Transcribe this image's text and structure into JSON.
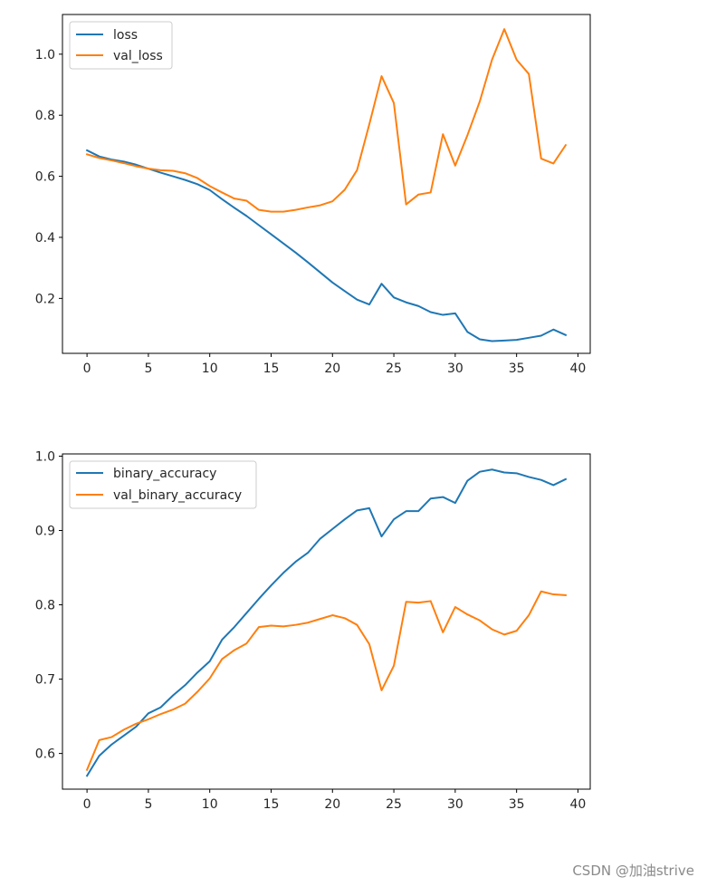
{
  "watermark": "CSDN @加油strive",
  "colors": {
    "series1": "#1f77b4",
    "series2": "#ff7f0e",
    "axis": "#000000",
    "text": "#262626"
  },
  "chart_data": [
    {
      "type": "line",
      "title": "",
      "xlabel": "",
      "ylabel": "",
      "xlim": [
        -2,
        41
      ],
      "ylim": [
        0.02,
        1.13
      ],
      "xticks": [
        0,
        5,
        10,
        15,
        20,
        25,
        30,
        35,
        40
      ],
      "yticks": [
        0.2,
        0.4,
        0.6,
        0.8,
        1.0
      ],
      "ytick_labels": [
        "0.2",
        "0.4",
        "0.6",
        "0.8",
        "1.0"
      ],
      "legend_position": "top-left",
      "grid": false,
      "x": [
        0,
        1,
        2,
        3,
        4,
        5,
        6,
        7,
        8,
        9,
        10,
        11,
        12,
        13,
        14,
        15,
        16,
        17,
        18,
        19,
        20,
        21,
        22,
        23,
        24,
        25,
        26,
        27,
        28,
        29,
        30,
        31,
        32,
        33,
        34,
        35,
        36,
        37,
        38,
        39
      ],
      "series": [
        {
          "name": "loss",
          "color": "#1f77b4",
          "values": [
            0.685,
            0.665,
            0.655,
            0.648,
            0.638,
            0.625,
            0.612,
            0.6,
            0.588,
            0.574,
            0.555,
            0.525,
            0.497,
            0.47,
            0.44,
            0.41,
            0.38,
            0.35,
            0.318,
            0.285,
            0.252,
            0.224,
            0.196,
            0.18,
            0.248,
            0.203,
            0.187,
            0.175,
            0.155,
            0.146,
            0.151,
            0.09,
            0.066,
            0.06,
            0.062,
            0.064,
            0.071,
            0.078,
            0.098,
            0.08
          ]
        },
        {
          "name": "val_loss",
          "color": "#ff7f0e",
          "values": [
            0.672,
            0.66,
            0.652,
            0.643,
            0.633,
            0.625,
            0.62,
            0.618,
            0.61,
            0.594,
            0.568,
            0.547,
            0.527,
            0.52,
            0.49,
            0.484,
            0.484,
            0.49,
            0.498,
            0.505,
            0.518,
            0.556,
            0.62,
            0.77,
            0.928,
            0.84,
            0.508,
            0.54,
            0.547,
            0.738,
            0.635,
            0.735,
            0.845,
            0.982,
            1.082,
            0.982,
            0.935,
            0.658,
            0.642,
            0.702
          ]
        }
      ]
    },
    {
      "type": "line",
      "title": "",
      "xlabel": "",
      "ylabel": "",
      "xlim": [
        -2,
        41
      ],
      "ylim": [
        0.552,
        1.003
      ],
      "xticks": [
        0,
        5,
        10,
        15,
        20,
        25,
        30,
        35,
        40
      ],
      "yticks": [
        0.6,
        0.7,
        0.8,
        0.9,
        1.0
      ],
      "ytick_labels": [
        "0.6",
        "0.7",
        "0.8",
        "0.9",
        "1.0"
      ],
      "legend_position": "top-left",
      "grid": false,
      "x": [
        0,
        1,
        2,
        3,
        4,
        5,
        6,
        7,
        8,
        9,
        10,
        11,
        12,
        13,
        14,
        15,
        16,
        17,
        18,
        19,
        20,
        21,
        22,
        23,
        24,
        25,
        26,
        27,
        28,
        29,
        30,
        31,
        32,
        33,
        34,
        35,
        36,
        37,
        38,
        39
      ],
      "series": [
        {
          "name": "binary_accuracy",
          "color": "#1f77b4",
          "values": [
            0.57,
            0.597,
            0.612,
            0.624,
            0.636,
            0.654,
            0.662,
            0.678,
            0.692,
            0.709,
            0.724,
            0.753,
            0.77,
            0.789,
            0.808,
            0.826,
            0.843,
            0.858,
            0.87,
            0.889,
            0.902,
            0.915,
            0.927,
            0.93,
            0.892,
            0.915,
            0.926,
            0.926,
            0.943,
            0.945,
            0.937,
            0.967,
            0.979,
            0.982,
            0.978,
            0.977,
            0.972,
            0.968,
            0.961,
            0.969
          ]
        },
        {
          "name": "val_binary_accuracy",
          "color": "#ff7f0e",
          "values": [
            0.578,
            0.618,
            0.622,
            0.632,
            0.64,
            0.646,
            0.653,
            0.659,
            0.667,
            0.683,
            0.701,
            0.727,
            0.739,
            0.748,
            0.77,
            0.772,
            0.771,
            0.773,
            0.776,
            0.781,
            0.786,
            0.782,
            0.773,
            0.747,
            0.685,
            0.718,
            0.804,
            0.803,
            0.805,
            0.763,
            0.797,
            0.787,
            0.779,
            0.767,
            0.76,
            0.765,
            0.786,
            0.818,
            0.814,
            0.813
          ]
        }
      ]
    }
  ]
}
